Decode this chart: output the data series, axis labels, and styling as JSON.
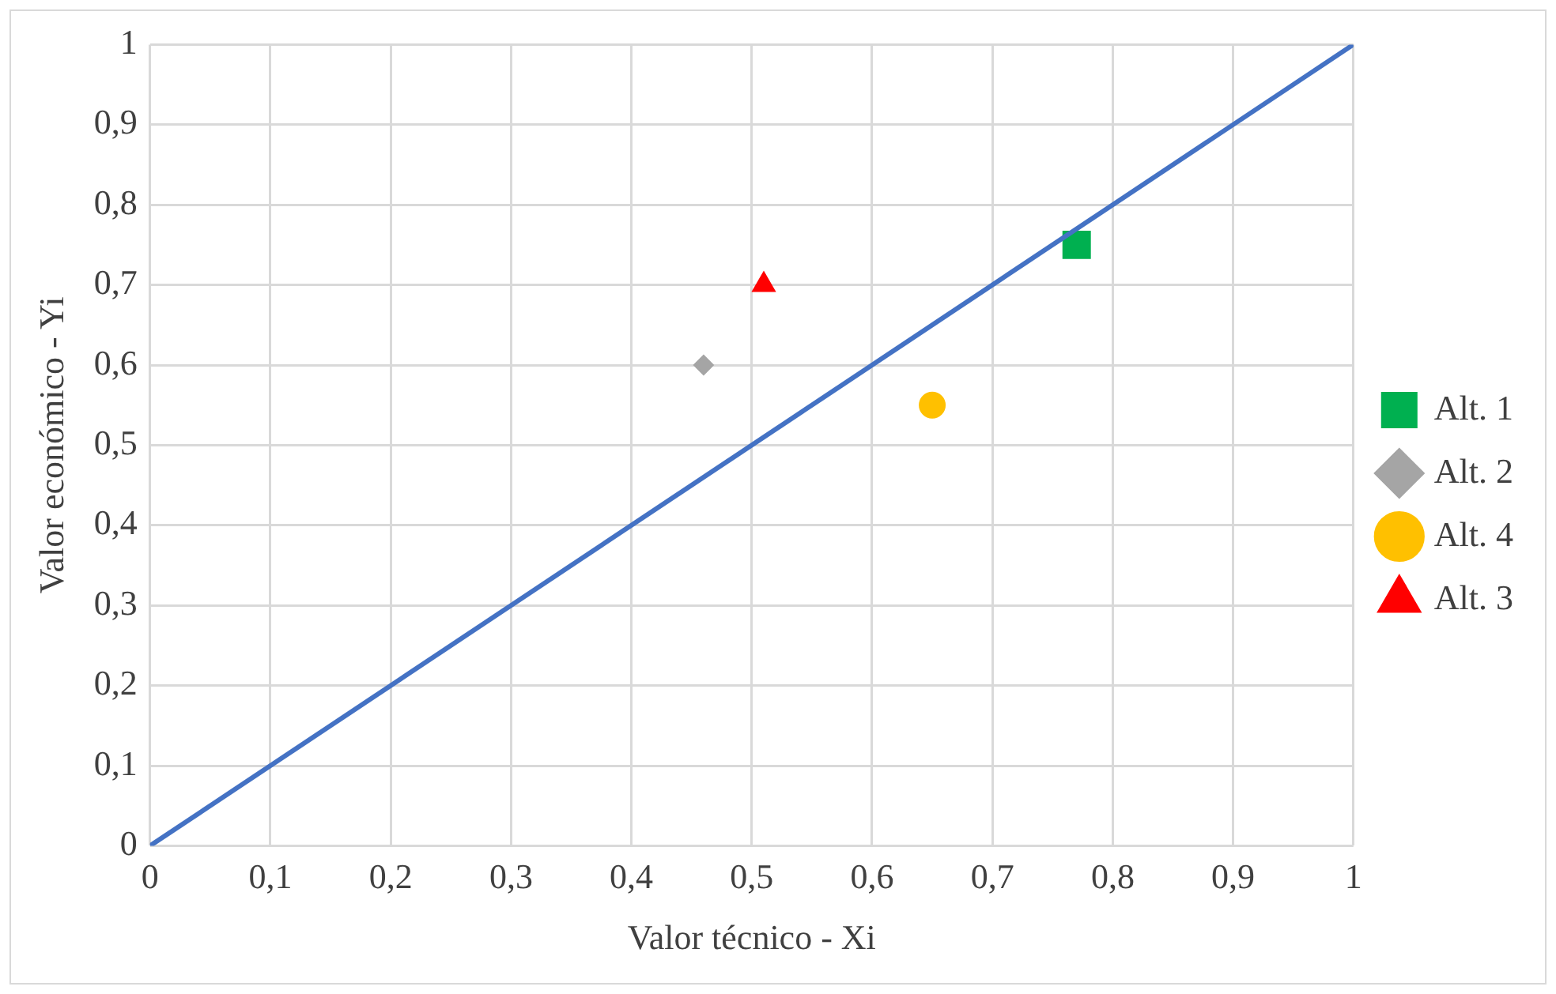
{
  "chart_data": {
    "type": "scatter",
    "xlabel": "Valor técnico - Xi",
    "ylabel": "Valor económico - Yi",
    "xlim": [
      0,
      1
    ],
    "ylim": [
      0,
      1
    ],
    "xticks": [
      0,
      {
        "value": 0.1,
        "label": "0,1"
      },
      {
        "value": 0.2,
        "label": "0,2"
      },
      {
        "value": 0.3,
        "label": "0,3"
      },
      {
        "value": 0.4,
        "label": "0,4"
      },
      {
        "value": 0.5,
        "label": "0,5"
      },
      {
        "value": 0.6,
        "label": "0,6"
      },
      {
        "value": 0.7,
        "label": "0,7"
      },
      {
        "value": 0.8,
        "label": "0,8"
      },
      {
        "value": 0.9,
        "label": "0,9"
      },
      1
    ],
    "yticks": [
      0,
      {
        "value": 0.1,
        "label": "0,1"
      },
      {
        "value": 0.2,
        "label": "0,2"
      },
      {
        "value": 0.3,
        "label": "0,3"
      },
      {
        "value": 0.4,
        "label": "0,4"
      },
      {
        "value": 0.5,
        "label": "0,5"
      },
      {
        "value": 0.6,
        "label": "0,6"
      },
      {
        "value": 0.7,
        "label": "0,7"
      },
      {
        "value": 0.8,
        "label": "0,8"
      },
      {
        "value": 0.9,
        "label": "0,9"
      },
      1
    ],
    "grid": true,
    "legend": "right",
    "series": [
      {
        "type": "line",
        "color": "#4472c4",
        "x": [
          0,
          1
        ],
        "values": [
          0,
          1
        ],
        "marker": "none"
      },
      {
        "name": "Alt. 1",
        "color": "#00b050",
        "x": [
          0.77
        ],
        "values": [
          0.75
        ],
        "marker": "square"
      },
      {
        "name": "Alt. 2",
        "color": "#a5a5a5",
        "x": [
          0.46
        ],
        "values": [
          0.6
        ],
        "marker": "diamond"
      },
      {
        "name": "Alt. 4",
        "color": "#ffc000",
        "x": [
          0.65
        ],
        "values": [
          0.55
        ],
        "marker": "circle"
      },
      {
        "name": "Alt. 3",
        "color": "#ff0000",
        "x": [
          0.51
        ],
        "values": [
          0.7
        ],
        "marker": "triangle"
      }
    ]
  }
}
